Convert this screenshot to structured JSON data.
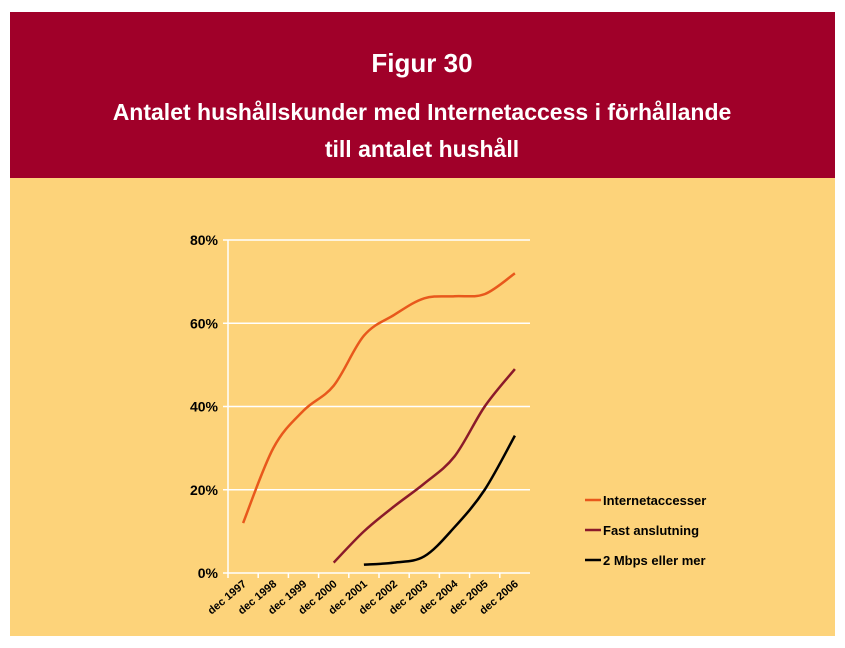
{
  "chart_data": {
    "type": "line",
    "title": "Figur 30",
    "subtitle": [
      "Antalet hushållskunder med Internetaccess i förhållande",
      "till antalet hushåll"
    ],
    "categories": [
      "dec 1997",
      "dec 1998",
      "dec 1999",
      "dec 2000",
      "dec 2001",
      "dec 2002",
      "dec 2003",
      "dec 2004",
      "dec 2005",
      "dec 2006"
    ],
    "series": [
      {
        "name": "Internetaccesser",
        "color": "#e8581c",
        "values": [
          12,
          30,
          39,
          45,
          57,
          62,
          66,
          66.5,
          67,
          72
        ]
      },
      {
        "name": "Fast anslutning",
        "color": "#8b1a2a",
        "values": [
          null,
          null,
          null,
          2.5,
          10,
          16,
          21.5,
          28,
          40,
          49
        ]
      },
      {
        "name": "2 Mbps eller mer",
        "color": "#000000",
        "values": [
          null,
          null,
          null,
          null,
          2,
          2.5,
          4,
          11,
          20,
          33
        ]
      }
    ],
    "ylim": [
      0,
      80
    ],
    "yticks": [
      {
        "value": 0,
        "label": "0%"
      },
      {
        "value": 20,
        "label": "20%"
      },
      {
        "value": 40,
        "label": "40%"
      },
      {
        "value": 60,
        "label": "60%"
      },
      {
        "value": 80,
        "label": "80%"
      }
    ],
    "grid": true,
    "legend": "right"
  }
}
